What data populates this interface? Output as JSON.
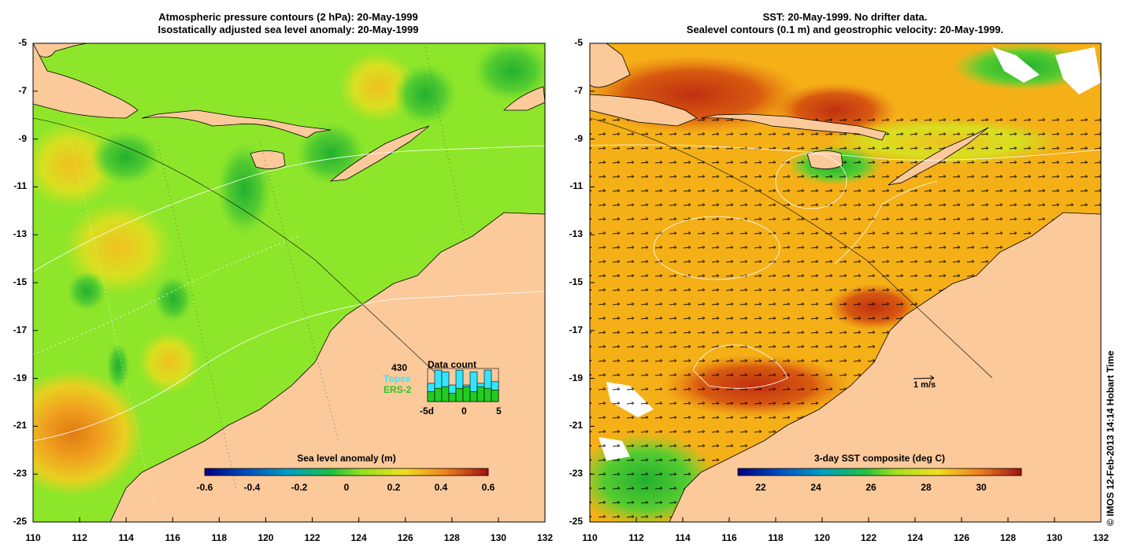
{
  "left_panel": {
    "title_line1": "Atmospheric pressure contours (2 hPa): 20-May-1999",
    "title_line2": "Isostatically adjusted sea level anomaly: 20-May-1999",
    "colorbar_label": "Sea level anomaly (m)",
    "colorbar_ticks": [
      "-0.6",
      "-0.4",
      "-0.2",
      "0",
      "0.2",
      "0.4",
      "0.6"
    ],
    "data_count": {
      "title": "Data count",
      "max": "430",
      "series": [
        {
          "name": "Topex",
          "color": "#33e6ff",
          "values": [
            0.55,
            0.95,
            0.9,
            0.5,
            0.95,
            0.5,
            0.9,
            0.55,
            0.95,
            0.6
          ]
        },
        {
          "name": "ERS-2",
          "color": "#22cc22",
          "values": [
            0.3,
            0.4,
            0.45,
            0.25,
            0.4,
            0.45,
            0.3,
            0.45,
            0.4,
            0.35
          ]
        }
      ],
      "x_ticks": [
        "-5d",
        "0",
        "5"
      ]
    }
  },
  "right_panel": {
    "title_line1": "SST: 20-May-1999. No drifter data.",
    "title_line2": "Sealevel contours (0.1 m) and geostrophic velocity: 20-May-1999.",
    "colorbar_label": "3-day SST composite (deg C)",
    "colorbar_ticks": [
      "22",
      "24",
      "26",
      "28",
      "30"
    ],
    "velocity_scale_label": "1 m/s"
  },
  "axes": {
    "y_ticks": [
      "-5",
      "-7",
      "-9",
      "-11",
      "-13",
      "-15",
      "-17",
      "-19",
      "-21",
      "-23",
      "-25"
    ],
    "x_ticks": [
      "110",
      "112",
      "114",
      "116",
      "118",
      "120",
      "122",
      "124",
      "126",
      "128",
      "130",
      "132"
    ]
  },
  "credit": "© IMOS 12-Feb-2013 14:14 Hobart Time",
  "colors": {
    "land": "#fbc99a",
    "ocean_sla": "#8ee62a",
    "ocean_sst": "#f5b018"
  }
}
